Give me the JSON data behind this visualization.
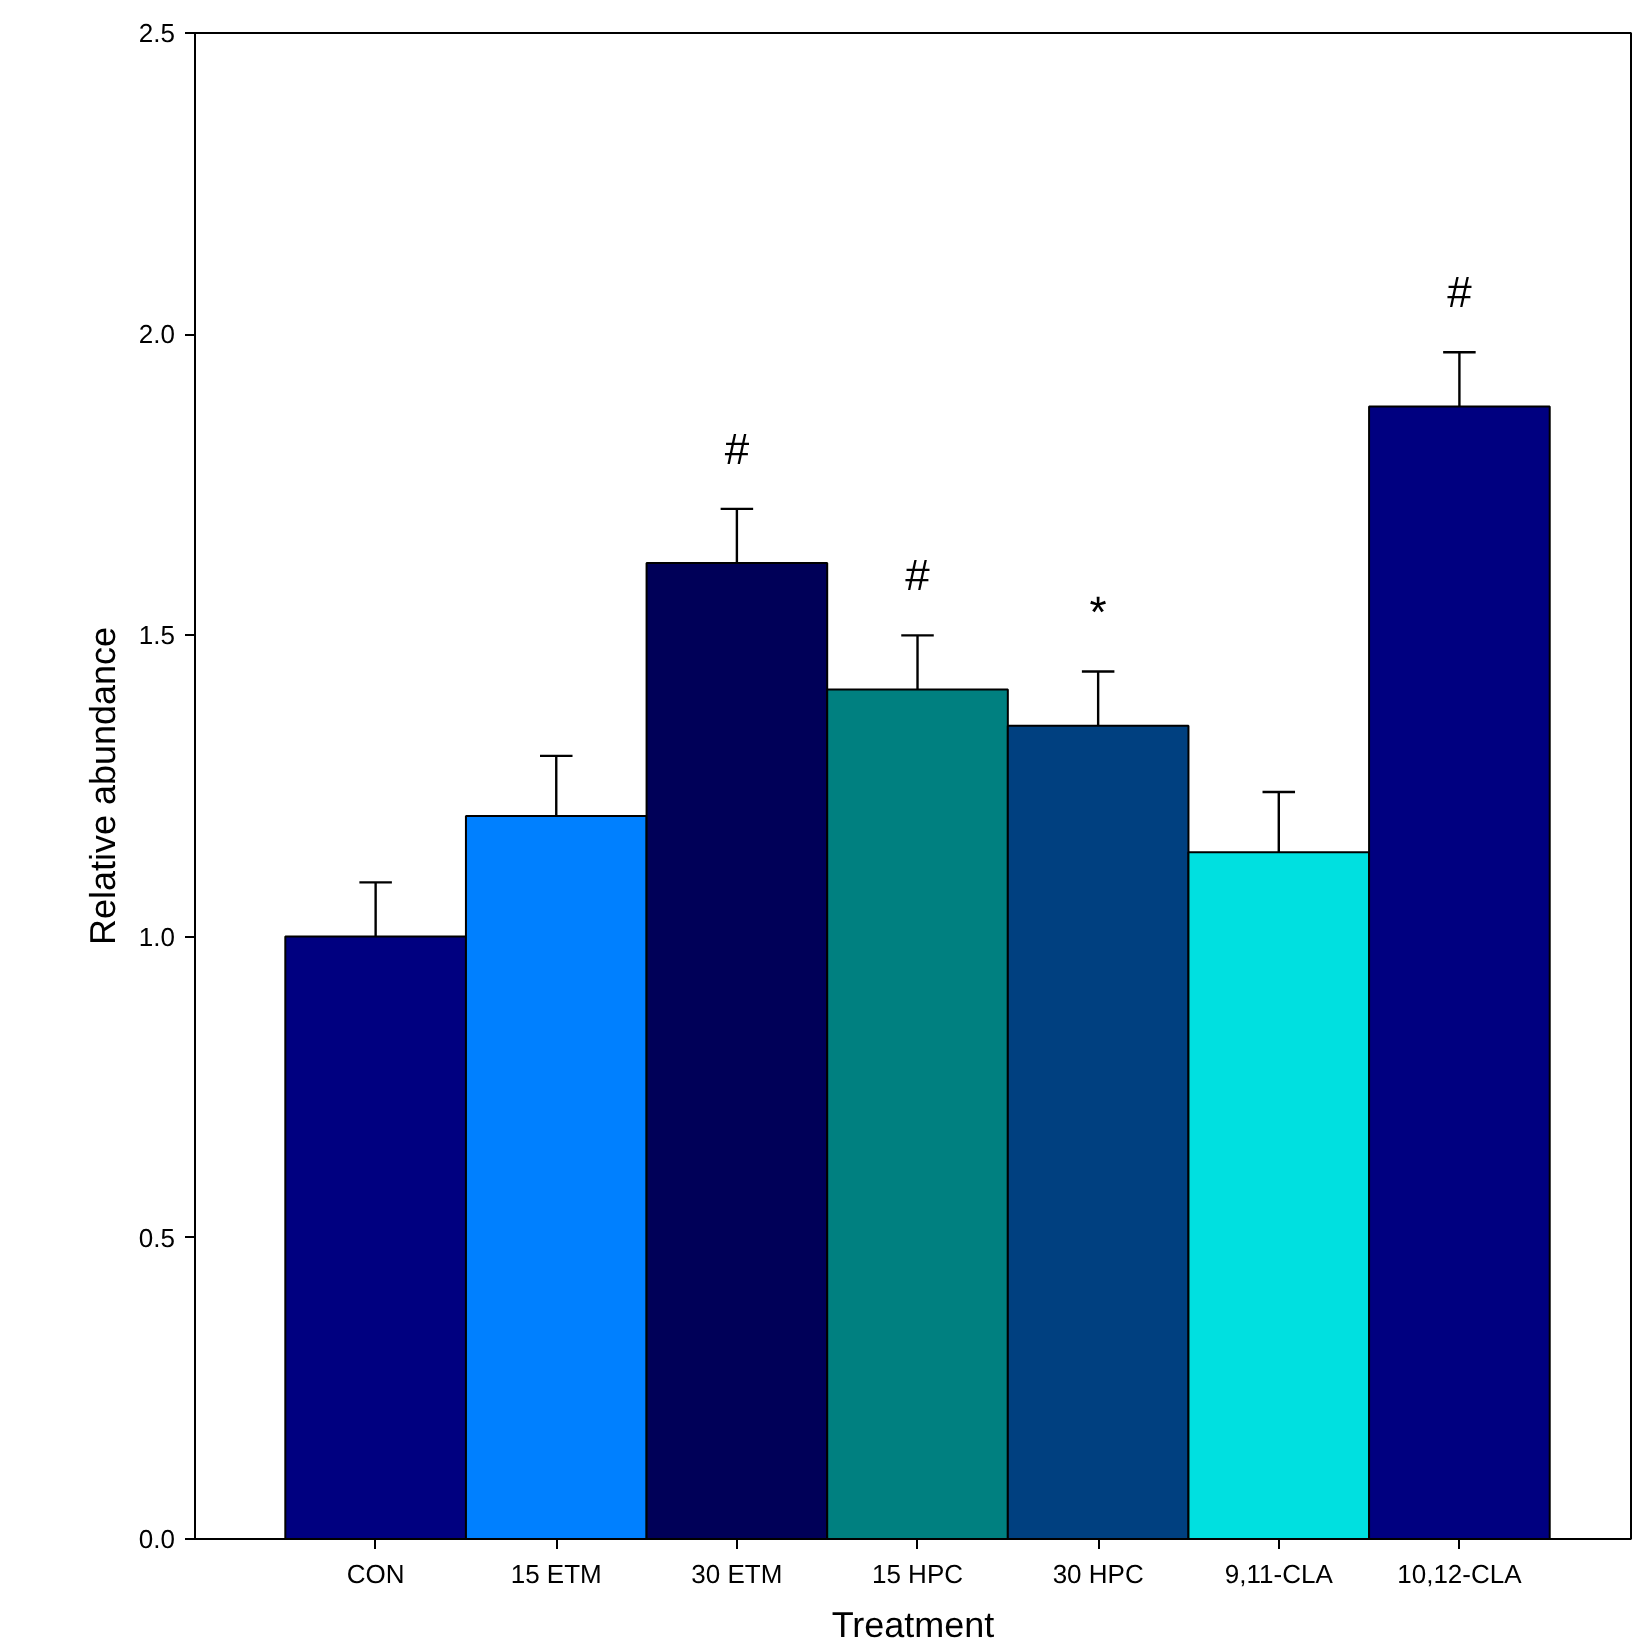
{
  "chart_data": {
    "type": "bar",
    "xlabel": "Treatment",
    "ylabel": "Relative abundance",
    "categories": [
      "CON",
      "15 ETM",
      "30 ETM",
      "15 HPC",
      "30 HPC",
      "9,11-CLA",
      "10,12-CLA"
    ],
    "values": [
      1.0,
      1.2,
      1.62,
      1.41,
      1.35,
      1.14,
      1.88
    ],
    "colors": [
      "#000080",
      "#0080ff",
      "#000058",
      "#008080",
      "#004080",
      "#00e0e0",
      "#000080"
    ],
    "errors": [
      [
        1.0,
        1.09
      ],
      [
        1.2,
        1.3
      ],
      [
        1.62,
        1.71
      ],
      [
        1.41,
        1.5
      ],
      [
        1.35,
        1.44
      ],
      [
        1.14,
        1.24
      ],
      [
        1.88,
        1.97
      ]
    ],
    "value_labels": [
      null,
      null,
      "#",
      "#",
      "*",
      null,
      "#"
    ],
    "ylim": [
      0,
      2.5
    ],
    "yticks": [
      {
        "value": 0,
        "label": "0.0"
      },
      {
        "value": 0.5,
        "label": "0.5"
      },
      {
        "value": 1,
        "label": "1.0"
      },
      {
        "value": 1.5,
        "label": "1.5"
      },
      {
        "value": 2,
        "label": "2.0"
      },
      {
        "value": 2.5,
        "label": "2.5"
      }
    ],
    "grid": false
  }
}
